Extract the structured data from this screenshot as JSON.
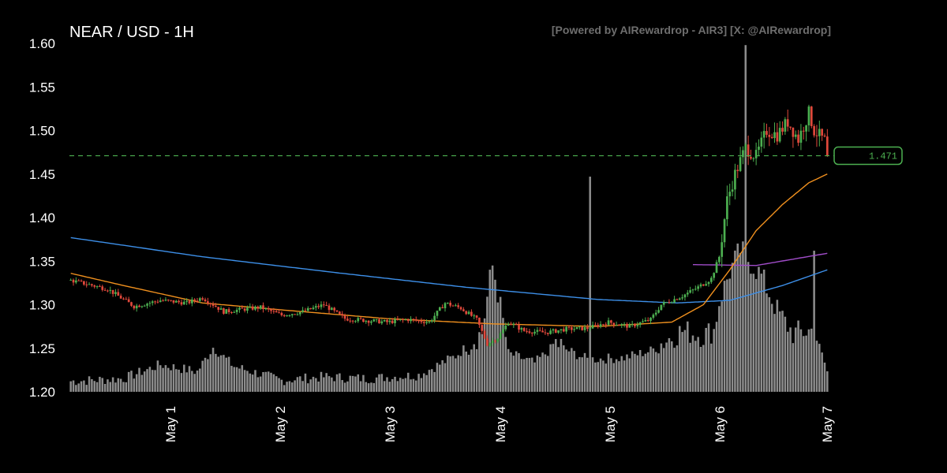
{
  "chart_data": {
    "type": "candlestick",
    "title": "NEAR / USD - 1H",
    "credit": "[Powered by AIRewardrop - AIR3] [X: @AIRewardrop]",
    "ylim": [
      1.2,
      1.6
    ],
    "yticks": [
      "1.20",
      "1.25",
      "1.30",
      "1.35",
      "1.40",
      "1.45",
      "1.50",
      "1.55",
      "1.60"
    ],
    "xticks": [
      "May 1",
      "May 2",
      "May 3",
      "May 4",
      "May 5",
      "May 6",
      "May 7"
    ],
    "last_price": 1.471,
    "last_price_label": "1.471",
    "colors": {
      "up": "#4caf50",
      "down": "#e0483b",
      "volume": "#8c8c8c",
      "ma_orange": "#f0901e",
      "ma_blue": "#3d8fe8",
      "ma_purple": "#a04cc8",
      "price_line": "#4caf50"
    },
    "price_keypoints": [
      [
        0,
        1.328
      ],
      [
        14,
        1.318
      ],
      [
        24,
        1.298
      ],
      [
        34,
        1.305
      ],
      [
        44,
        1.302
      ],
      [
        50,
        1.308
      ],
      [
        58,
        1.292
      ],
      [
        66,
        1.295
      ],
      [
        72,
        1.297
      ],
      [
        80,
        1.288
      ],
      [
        88,
        1.292
      ],
      [
        96,
        1.3
      ],
      [
        104,
        1.284
      ],
      [
        112,
        1.282
      ],
      [
        120,
        1.28
      ],
      [
        128,
        1.283
      ],
      [
        136,
        1.28
      ],
      [
        142,
        1.302
      ],
      [
        148,
        1.296
      ],
      [
        154,
        1.283
      ],
      [
        158,
        1.255
      ],
      [
        162,
        1.262
      ],
      [
        166,
        1.28
      ],
      [
        172,
        1.27
      ],
      [
        180,
        1.268
      ],
      [
        188,
        1.272
      ],
      [
        196,
        1.273
      ],
      [
        204,
        1.28
      ],
      [
        212,
        1.275
      ],
      [
        220,
        1.283
      ],
      [
        224,
        1.3
      ],
      [
        232,
        1.31
      ],
      [
        238,
        1.32
      ],
      [
        243,
        1.33
      ],
      [
        246,
        1.355
      ],
      [
        249,
        1.42
      ],
      [
        252,
        1.45
      ],
      [
        256,
        1.48
      ],
      [
        260,
        1.47
      ],
      [
        264,
        1.5
      ],
      [
        268,
        1.495
      ],
      [
        272,
        1.51
      ],
      [
        276,
        1.49
      ],
      [
        280,
        1.52
      ],
      [
        282,
        1.5
      ],
      [
        286,
        1.488
      ],
      [
        287,
        1.471
      ]
    ],
    "volume_keypoints": [
      [
        0,
        1.211
      ],
      [
        20,
        1.214
      ],
      [
        34,
        1.23
      ],
      [
        48,
        1.222
      ],
      [
        54,
        1.25
      ],
      [
        62,
        1.228
      ],
      [
        80,
        1.212
      ],
      [
        96,
        1.216
      ],
      [
        112,
        1.214
      ],
      [
        132,
        1.218
      ],
      [
        146,
        1.24
      ],
      [
        156,
        1.265
      ],
      [
        160,
        1.345
      ],
      [
        166,
        1.243
      ],
      [
        176,
        1.232
      ],
      [
        184,
        1.253
      ],
      [
        196,
        1.236
      ],
      [
        210,
        1.238
      ],
      [
        220,
        1.246
      ],
      [
        232,
        1.267
      ],
      [
        240,
        1.262
      ],
      [
        244,
        1.268
      ],
      [
        246,
        1.3
      ],
      [
        250,
        1.335
      ],
      [
        254,
        1.36
      ],
      [
        262,
        1.33
      ],
      [
        268,
        1.29
      ],
      [
        274,
        1.264
      ],
      [
        282,
        1.268
      ],
      [
        286,
        1.232
      ],
      [
        287,
        1.222
      ]
    ],
    "volume_spikes": [
      [
        160,
        1.345
      ],
      [
        197,
        1.447
      ],
      [
        256,
        1.598
      ],
      [
        282,
        1.362
      ]
    ],
    "ma_blue_keypoints": [
      [
        0,
        1.377
      ],
      [
        50,
        1.355
      ],
      [
        100,
        1.337
      ],
      [
        150,
        1.32
      ],
      [
        200,
        1.306
      ],
      [
        230,
        1.302
      ],
      [
        250,
        1.305
      ],
      [
        270,
        1.322
      ],
      [
        287,
        1.34
      ]
    ],
    "ma_orange_keypoints": [
      [
        0,
        1.336
      ],
      [
        20,
        1.322
      ],
      [
        50,
        1.302
      ],
      [
        80,
        1.294
      ],
      [
        120,
        1.284
      ],
      [
        160,
        1.278
      ],
      [
        200,
        1.275
      ],
      [
        228,
        1.28
      ],
      [
        240,
        1.3
      ],
      [
        250,
        1.34
      ],
      [
        260,
        1.385
      ],
      [
        270,
        1.415
      ],
      [
        280,
        1.44
      ],
      [
        287,
        1.45
      ]
    ],
    "ma_purple_keypoints": [
      [
        236,
        1.346
      ],
      [
        260,
        1.345
      ],
      [
        287,
        1.359
      ]
    ],
    "candle_count": 288
  }
}
